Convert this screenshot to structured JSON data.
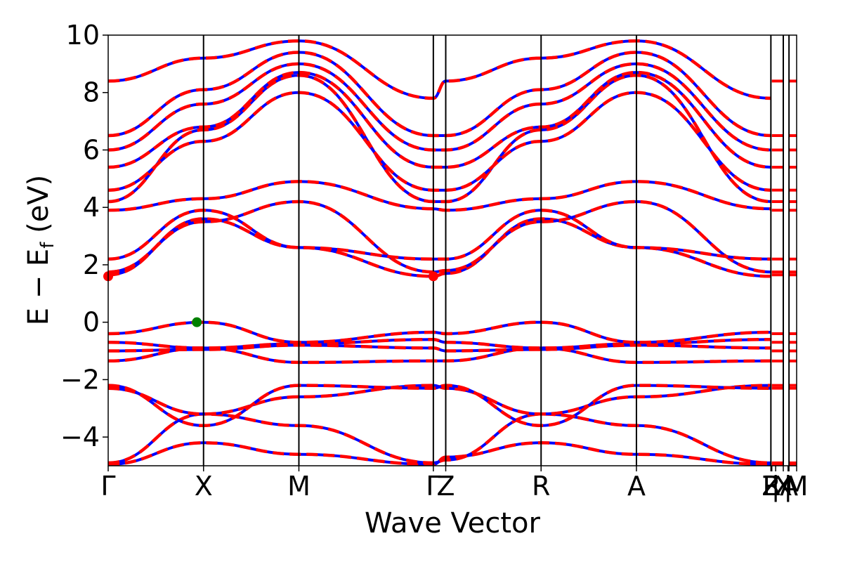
{
  "chart_data": {
    "type": "line",
    "title": "",
    "xlabel": "Wave Vector",
    "ylabel_parts": {
      "main": "E − E",
      "sub": "f",
      "unit": " (eV)"
    },
    "ylim": [
      -5,
      10
    ],
    "yticks": [
      -4,
      -2,
      0,
      2,
      4,
      6,
      8,
      10
    ],
    "ytick_labels": [
      "−4",
      "−2",
      "0",
      "2",
      "4",
      "6",
      "8",
      "10"
    ],
    "kpath": [
      {
        "label": "Γ",
        "x": 0.0
      },
      {
        "label": "X",
        "x": 1.0
      },
      {
        "label": "M",
        "x": 2.0
      },
      {
        "label": "Γ",
        "x": 3.41
      },
      {
        "label": "Z",
        "x": 3.54
      },
      {
        "label": "R",
        "x": 4.54
      },
      {
        "label": "A",
        "x": 5.54
      },
      {
        "label": "Z",
        "x": 6.95
      },
      {
        "label": "R",
        "x": 6.96
      },
      {
        "label": "|",
        "x": 7.0
      },
      {
        "label": "X",
        "x": 7.08
      },
      {
        "label": "|",
        "x": 7.13
      },
      {
        "label": "A",
        "x": 7.14
      },
      {
        "label": "M",
        "x": 7.22
      }
    ],
    "vlines": [
      1.0,
      2.0,
      3.41,
      3.54,
      4.54,
      5.54,
      6.95,
      7.08,
      7.14
    ],
    "xlim": [
      0,
      7.22
    ],
    "grid": false,
    "series_styles": [
      {
        "role": "solid",
        "color": "#0000ff"
      },
      {
        "role": "dashed",
        "color": "#ff0000"
      }
    ],
    "markers": [
      {
        "kind": "VBM",
        "x": 0.93,
        "y": 0.0,
        "color": "#008000"
      },
      {
        "kind": "CBM",
        "x": 0.0,
        "y": 1.6,
        "color": "#ff0000"
      },
      {
        "kind": "CBM",
        "x": 3.41,
        "y": 1.6,
        "color": "#ff0000"
      }
    ],
    "bands": [
      {
        "y": [
          -4.95,
          -4.2,
          -4.6,
          -4.95,
          -4.7,
          -4.2,
          -4.6,
          -4.95
        ]
      },
      {
        "y": [
          -4.9,
          -3.2,
          -3.6,
          -4.9,
          -4.8,
          -3.2,
          -3.6,
          -4.9
        ]
      },
      {
        "y": [
          -2.3,
          -3.2,
          -2.6,
          -2.2,
          -2.3,
          -3.2,
          -2.6,
          -2.2
        ]
      },
      {
        "y": [
          -2.2,
          -3.6,
          -2.2,
          -2.3,
          -2.2,
          -3.6,
          -2.2,
          -2.3
        ]
      },
      {
        "y": [
          -1.35,
          -0.9,
          -1.4,
          -1.35,
          -1.35,
          -0.9,
          -1.4,
          -1.35
        ]
      },
      {
        "y": [
          -1.0,
          -0.95,
          -0.8,
          -0.9,
          -1.0,
          -0.95,
          -0.8,
          -0.9
        ]
      },
      {
        "y": [
          -0.7,
          -0.9,
          -0.75,
          -0.6,
          -0.7,
          -0.9,
          -0.75,
          -0.6
        ]
      },
      {
        "y": [
          -0.4,
          0.0,
          -0.7,
          -0.35,
          -0.4,
          0.0,
          -0.7,
          -0.35
        ]
      },
      {
        "y": [
          1.65,
          3.6,
          2.6,
          1.6,
          1.7,
          3.6,
          2.6,
          1.6
        ]
      },
      {
        "y": [
          1.75,
          3.5,
          4.2,
          1.75,
          1.8,
          3.5,
          4.2,
          1.75
        ]
      },
      {
        "y": [
          2.2,
          3.9,
          2.6,
          2.2,
          2.2,
          3.9,
          2.6,
          2.2
        ]
      },
      {
        "y": [
          3.9,
          4.3,
          4.9,
          3.95,
          3.9,
          4.3,
          4.9,
          3.95
        ]
      },
      {
        "y": [
          4.2,
          6.7,
          8.6,
          4.2,
          4.2,
          6.7,
          8.6,
          4.2
        ]
      },
      {
        "y": [
          4.6,
          6.3,
          8.0,
          4.6,
          4.6,
          6.3,
          8.0,
          4.6
        ]
      },
      {
        "y": [
          5.4,
          6.8,
          8.7,
          5.4,
          5.4,
          6.8,
          8.7,
          5.4
        ]
      },
      {
        "y": [
          6.0,
          7.6,
          9.0,
          6.0,
          6.0,
          7.6,
          9.0,
          6.0
        ]
      },
      {
        "y": [
          6.5,
          8.1,
          9.4,
          6.5,
          6.5,
          8.1,
          9.4,
          6.5
        ]
      },
      {
        "y": [
          8.4,
          9.2,
          9.8,
          7.8,
          8.4,
          9.2,
          9.8,
          7.8
        ]
      }
    ]
  }
}
